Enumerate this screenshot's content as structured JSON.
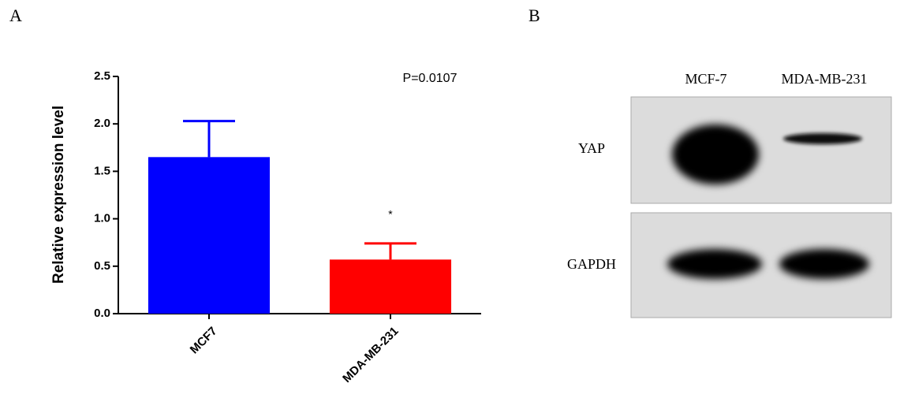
{
  "panel_labels": [
    "A",
    "B"
  ],
  "chart_data": {
    "type": "bar",
    "y_label": "Relative expression level",
    "categories": [
      "MCF7",
      "MDA-MB-231"
    ],
    "values": [
      1.65,
      0.57
    ],
    "errors": [
      0.38,
      0.17
    ],
    "colors": [
      "#0000ff",
      "#ff0000"
    ],
    "ylim": [
      0,
      2.5
    ],
    "yticks": [
      {
        "value": 0,
        "label": "0.0"
      },
      0.5,
      {
        "value": 1,
        "label": "1.0"
      },
      1.5,
      {
        "value": 2,
        "label": "2.0"
      },
      2.5
    ],
    "annotations": [
      "P=0.0107",
      "*"
    ]
  },
  "blot": {
    "lanes": [
      "MCF-7",
      "MDA-MB-231"
    ],
    "rows": [
      "YAP",
      "GAPDH"
    ]
  }
}
